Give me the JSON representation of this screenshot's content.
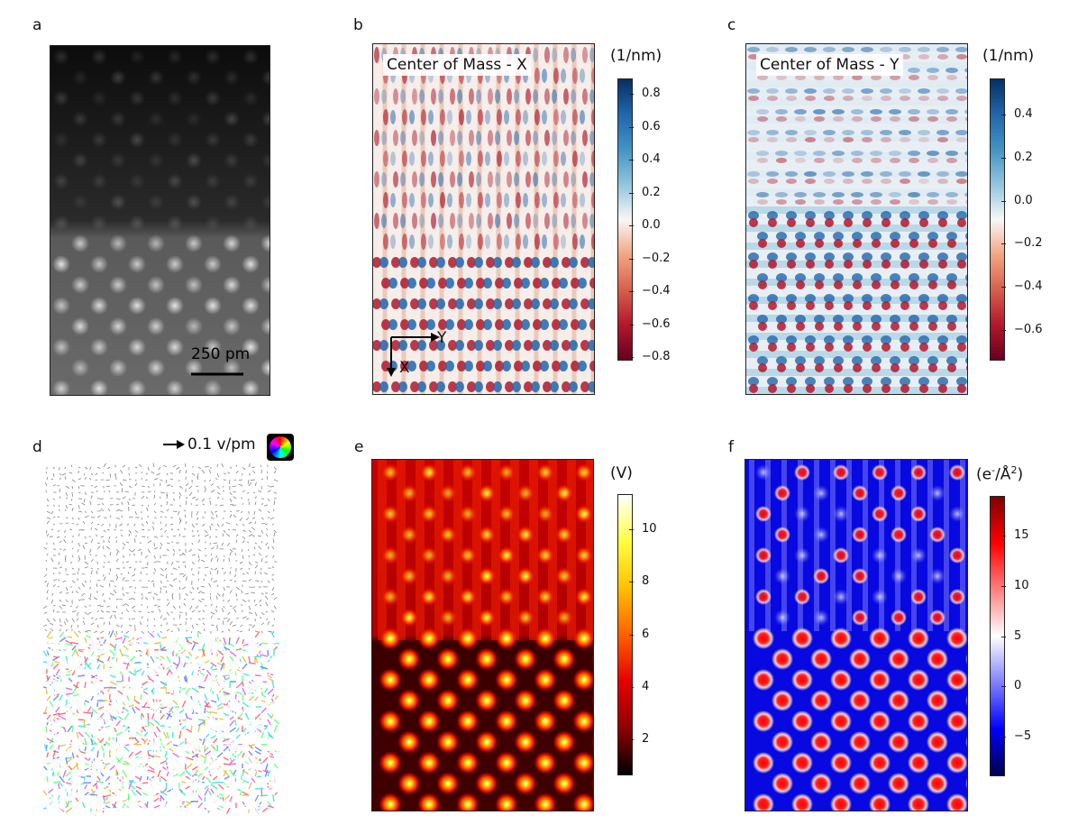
{
  "panels": {
    "a": {
      "letter": "a",
      "scalebar_label": "250 pm"
    },
    "b": {
      "letter": "b",
      "title": "Center of Mass - X",
      "unit": "(1/nm)",
      "ticks": [
        "0.8",
        "0.6",
        "0.4",
        "0.2",
        "0.0",
        "−0.2",
        "−0.4",
        "−0.6",
        "−0.8"
      ],
      "axis_y": "Y",
      "axis_x": "X"
    },
    "c": {
      "letter": "c",
      "title": "Center of Mass - Y",
      "unit": "(1/nm)",
      "ticks": [
        "0.4",
        "0.2",
        "0.0",
        "−0.2",
        "−0.4",
        "−0.6"
      ]
    },
    "d": {
      "letter": "d",
      "arrow_label": "0.1 v/pm"
    },
    "e": {
      "letter": "e",
      "unit": "(V)",
      "ticks": [
        "10",
        "8",
        "6",
        "4",
        "2"
      ]
    },
    "f": {
      "letter": "f",
      "unit_main": "(e",
      "unit_sup1": "-",
      "unit_mid": "/Å",
      "unit_sup2": "2",
      "unit_end": ")",
      "ticks": [
        "15",
        "10",
        "5",
        "0",
        "−5"
      ]
    }
  },
  "colors": {
    "rdbu_dark_red": "#67001f",
    "rdbu_red": "#d6604d",
    "rdbu_white": "#f7f7f7",
    "rdbu_blue": "#4393c3",
    "rdbu_dark_blue": "#053061",
    "hot_black": "#000000",
    "hot_red": "#e60000",
    "hot_yellow": "#ffff00",
    "seismic_navy": "#00004c",
    "seismic_blue": "#0000ff",
    "seismic_red": "#ff0000",
    "seismic_dark": "#800000"
  }
}
